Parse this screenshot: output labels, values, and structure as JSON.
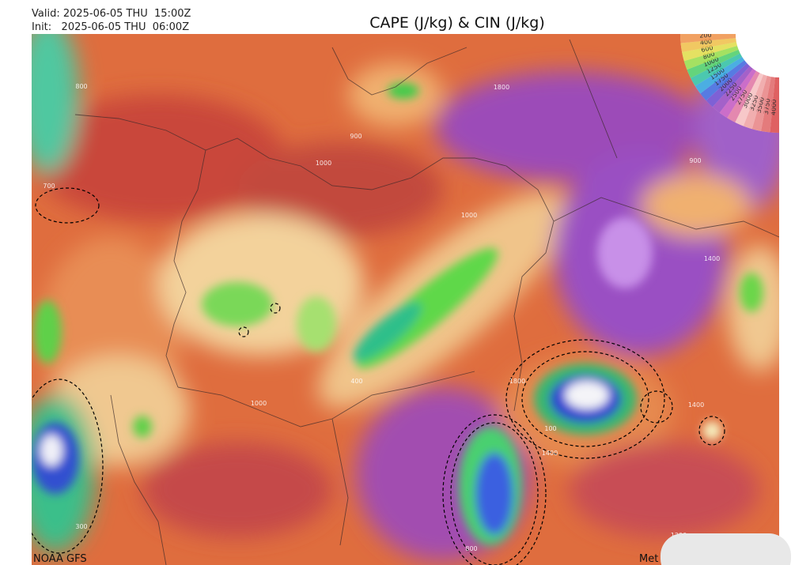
{
  "header": {
    "valid": "Valid: 2025-06-05 THU  15:00Z",
    "init": "Init:   2025-06-05 THU  06:00Z",
    "title": "CAPE (J/kg) & CIN (J/kg)"
  },
  "map": {
    "contour_labels": [
      "800",
      "900",
      "1000",
      "1800",
      "1000",
      "900",
      "1400",
      "700",
      "400",
      "1800",
      "1000",
      "100",
      "1400",
      "1400",
      "300",
      "1200",
      "800"
    ],
    "legend_labels": [
      "4000",
      "3750",
      "3500",
      "3250",
      "3000",
      "2750",
      "2500",
      "2250",
      "2000",
      "1750",
      "1500",
      "1250",
      "1000",
      "800",
      "600",
      "400",
      "200"
    ],
    "source": "NOAA GFS",
    "watermark": "Met"
  }
}
